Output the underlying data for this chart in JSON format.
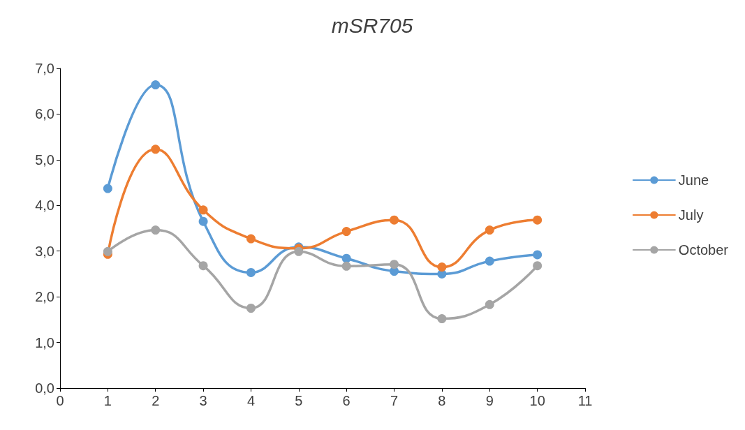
{
  "chart_data": {
    "type": "line",
    "title": "mSR705",
    "x": [
      1,
      2,
      3,
      4,
      5,
      6,
      7,
      8,
      9,
      10
    ],
    "series": [
      {
        "name": "June",
        "color": "#5b9bd5",
        "values": [
          4.37,
          6.64,
          3.65,
          2.53,
          3.09,
          2.84,
          2.56,
          2.5,
          2.78,
          2.92
        ]
      },
      {
        "name": "July",
        "color": "#ed7d31",
        "values": [
          2.93,
          5.23,
          3.9,
          3.27,
          3.06,
          3.43,
          3.68,
          2.65,
          3.46,
          3.68
        ]
      },
      {
        "name": "October",
        "color": "#a5a5a5",
        "values": [
          2.99,
          3.46,
          2.68,
          1.75,
          2.99,
          2.67,
          2.71,
          1.52,
          1.83,
          2.68
        ]
      }
    ],
    "xlim": [
      0,
      11
    ],
    "xticks": [
      0,
      1,
      2,
      3,
      4,
      5,
      6,
      7,
      8,
      9,
      10,
      11
    ],
    "ylim": [
      0,
      7
    ],
    "yticks": [
      {
        "value": 0,
        "label": "0,0"
      },
      {
        "value": 1,
        "label": "1,0"
      },
      {
        "value": 2,
        "label": "2,0"
      },
      {
        "value": 3,
        "label": "3,0"
      },
      {
        "value": 4,
        "label": "4,0"
      },
      {
        "value": 5,
        "label": "5,0"
      },
      {
        "value": 6,
        "label": "6,0"
      },
      {
        "value": 7,
        "label": "7,0"
      }
    ],
    "grid": false,
    "legend": "right",
    "marker": "circle",
    "line_style": "solid"
  }
}
